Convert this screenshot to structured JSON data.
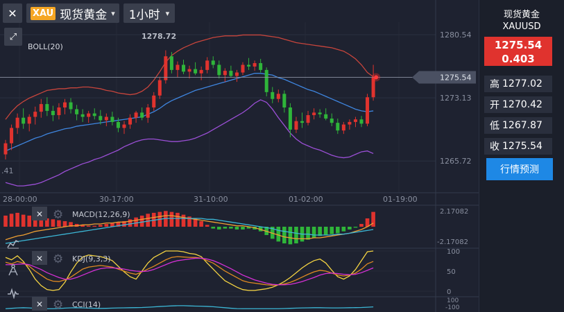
{
  "toolbar": {
    "close_label": "✕",
    "symbol_badge": "XAU",
    "symbol_name": "现货黄金",
    "timeframe": "1小时",
    "caret": "▾",
    "expand_label": "⤢"
  },
  "chart": {
    "indicator_label": "BOLL(20)",
    "high_marker": "1278.72",
    "left_partial_label": ".41",
    "price_axis": [
      "1280.54",
      "1273.13",
      "1265.72"
    ],
    "current_price_tag": "1275.54",
    "time_axis": [
      "28-00:00",
      "30-17:00",
      "31-10:00",
      "01-02:00",
      "01-19:00"
    ]
  },
  "macd": {
    "label": "MACD(12,26,9)",
    "axis_top": "2.17082",
    "axis_bottom": "-2.17082"
  },
  "kdj": {
    "label": "KDJ(9,3,3)",
    "axis": [
      "100",
      "50",
      "0"
    ]
  },
  "cci": {
    "label": "CCI(14)",
    "axis": [
      "100",
      "-100"
    ]
  },
  "quote": {
    "name": "现货黄金",
    "code": "XAUUSD",
    "price": "1275.54",
    "change": "0.403",
    "high_label": "高",
    "high_value": "1277.02",
    "open_label": "开",
    "open_value": "1270.42",
    "low_label": "低",
    "low_value": "1267.87",
    "close_label": "收",
    "close_value": "1275.54",
    "forecast_label": "行情预测"
  },
  "icons": {
    "indicator_close": "✕",
    "settings": "⚙"
  },
  "colors": {
    "up": "#e0332e",
    "down": "#2fb53a",
    "boll_upper": "#c8453c",
    "boll_mid": "#3f86e0",
    "boll_lower": "#9b4fd6",
    "accent": "#1e88e5"
  },
  "chart_data": {
    "type": "candlestick",
    "candles": [
      [
        1266.5,
        1268.2,
        1265.9,
        1267.8
      ],
      [
        1267.8,
        1270.0,
        1267.0,
        1269.6
      ],
      [
        1269.6,
        1271.3,
        1268.9,
        1270.8
      ],
      [
        1270.8,
        1271.9,
        1269.5,
        1270.1
      ],
      [
        1270.1,
        1271.2,
        1269.2,
        1270.9
      ],
      [
        1270.9,
        1272.1,
        1270.0,
        1271.5
      ],
      [
        1271.5,
        1273.0,
        1270.8,
        1272.4
      ],
      [
        1272.4,
        1273.2,
        1271.0,
        1271.6
      ],
      [
        1271.6,
        1272.2,
        1270.4,
        1271.1
      ],
      [
        1271.1,
        1272.5,
        1270.6,
        1272.0
      ],
      [
        1272.0,
        1273.0,
        1271.2,
        1272.6
      ],
      [
        1272.6,
        1273.1,
        1271.3,
        1271.8
      ],
      [
        1271.8,
        1272.3,
        1270.5,
        1271.2
      ],
      [
        1271.2,
        1271.8,
        1270.3,
        1270.9
      ],
      [
        1270.9,
        1271.6,
        1270.2,
        1271.3
      ],
      [
        1271.3,
        1271.9,
        1270.6,
        1271.0
      ],
      [
        1271.0,
        1271.7,
        1270.0,
        1270.5
      ],
      [
        1270.5,
        1271.3,
        1269.8,
        1270.9
      ],
      [
        1270.9,
        1271.5,
        1269.9,
        1270.3
      ],
      [
        1270.3,
        1270.8,
        1269.1,
        1269.6
      ],
      [
        1269.6,
        1270.4,
        1268.9,
        1270.0
      ],
      [
        1270.0,
        1271.2,
        1269.5,
        1270.8
      ],
      [
        1270.8,
        1271.6,
        1270.2,
        1271.4
      ],
      [
        1271.4,
        1272.0,
        1270.5,
        1270.8
      ],
      [
        1270.8,
        1272.4,
        1270.2,
        1272.0
      ],
      [
        1272.0,
        1273.8,
        1271.6,
        1273.4
      ],
      [
        1273.4,
        1275.6,
        1273.0,
        1275.2
      ],
      [
        1275.2,
        1278.7,
        1274.8,
        1278.0
      ],
      [
        1278.0,
        1278.5,
        1276.0,
        1276.4
      ],
      [
        1276.4,
        1277.4,
        1275.5,
        1277.0
      ],
      [
        1277.0,
        1277.6,
        1275.9,
        1276.2
      ],
      [
        1276.2,
        1276.9,
        1275.4,
        1276.5
      ],
      [
        1276.5,
        1277.3,
        1275.8,
        1276.0
      ],
      [
        1276.0,
        1276.8,
        1275.2,
        1276.4
      ],
      [
        1276.4,
        1277.9,
        1276.0,
        1277.5
      ],
      [
        1277.5,
        1278.0,
        1276.6,
        1277.0
      ],
      [
        1277.0,
        1277.5,
        1275.4,
        1275.8
      ],
      [
        1275.8,
        1276.6,
        1275.0,
        1276.3
      ],
      [
        1276.3,
        1276.9,
        1275.5,
        1275.7
      ],
      [
        1275.7,
        1276.4,
        1275.0,
        1276.1
      ],
      [
        1276.1,
        1277.3,
        1275.8,
        1277.0
      ],
      [
        1277.0,
        1277.8,
        1276.4,
        1276.8
      ],
      [
        1276.8,
        1277.5,
        1276.3,
        1277.2
      ],
      [
        1277.2,
        1277.7,
        1276.1,
        1276.4
      ],
      [
        1276.4,
        1276.7,
        1273.3,
        1273.8
      ],
      [
        1273.8,
        1274.4,
        1272.5,
        1273.0
      ],
      [
        1273.0,
        1274.1,
        1272.6,
        1273.6
      ],
      [
        1273.6,
        1274.0,
        1271.4,
        1272.0
      ],
      [
        1272.0,
        1272.5,
        1268.5,
        1269.4
      ],
      [
        1269.4,
        1270.9,
        1269.0,
        1270.4
      ],
      [
        1270.4,
        1271.4,
        1269.6,
        1270.2
      ],
      [
        1270.2,
        1271.6,
        1269.9,
        1271.1
      ],
      [
        1271.1,
        1271.9,
        1270.6,
        1271.4
      ],
      [
        1271.4,
        1271.8,
        1270.8,
        1271.2
      ],
      [
        1271.2,
        1271.9,
        1270.5,
        1270.7
      ],
      [
        1270.7,
        1271.3,
        1269.8,
        1270.2
      ],
      [
        1270.2,
        1270.7,
        1268.9,
        1269.3
      ],
      [
        1269.3,
        1270.3,
        1268.9,
        1270.0
      ],
      [
        1270.0,
        1270.6,
        1269.4,
        1270.3
      ],
      [
        1270.3,
        1270.9,
        1269.7,
        1270.6
      ],
      [
        1270.6,
        1271.0,
        1269.7,
        1270.1
      ],
      [
        1270.1,
        1273.6,
        1269.8,
        1273.2
      ],
      [
        1273.2,
        1277.0,
        1272.8,
        1275.54
      ]
    ],
    "boll_upper": [
      1270.6,
      1271.5,
      1272.2,
      1272.7,
      1273.1,
      1273.4,
      1273.7,
      1274.0,
      1274.1,
      1274.2,
      1274.2,
      1274.3,
      1274.3,
      1274.4,
      1274.4,
      1274.3,
      1274.2,
      1274.0,
      1273.9,
      1273.7,
      1273.6,
      1273.5,
      1273.6,
      1273.9,
      1274.4,
      1275.2,
      1276.2,
      1277.3,
      1278.1,
      1278.6,
      1279.0,
      1279.3,
      1279.6,
      1279.8,
      1280.0,
      1280.2,
      1280.3,
      1280.4,
      1280.4,
      1280.4,
      1280.5,
      1280.5,
      1280.5,
      1280.5,
      1280.4,
      1280.3,
      1280.2,
      1280.0,
      1279.8,
      1279.6,
      1279.5,
      1279.4,
      1279.3,
      1279.2,
      1279.1,
      1279.0,
      1278.8,
      1278.6,
      1278.2,
      1277.7,
      1277.0,
      1276.1,
      1275.6
    ],
    "boll_mid": [
      1266.9,
      1267.2,
      1267.5,
      1267.8,
      1268.1,
      1268.4,
      1268.6,
      1268.9,
      1269.1,
      1269.3,
      1269.5,
      1269.6,
      1269.8,
      1269.9,
      1270.0,
      1270.1,
      1270.2,
      1270.3,
      1270.4,
      1270.5,
      1270.6,
      1270.7,
      1270.8,
      1270.9,
      1271.2,
      1271.5,
      1271.9,
      1272.4,
      1272.8,
      1273.1,
      1273.4,
      1273.7,
      1274.0,
      1274.2,
      1274.4,
      1274.6,
      1274.8,
      1275.0,
      1275.2,
      1275.4,
      1275.6,
      1275.8,
      1276.0,
      1276.0,
      1275.9,
      1275.8,
      1275.5,
      1275.3,
      1275.0,
      1274.7,
      1274.4,
      1274.1,
      1273.9,
      1273.6,
      1273.3,
      1273.0,
      1272.7,
      1272.4,
      1272.1,
      1271.8,
      1271.6,
      1271.5,
      1271.6
    ],
    "boll_lower": [
      1263.2,
      1263.0,
      1262.8,
      1262.8,
      1262.9,
      1263.0,
      1263.2,
      1263.5,
      1263.8,
      1264.1,
      1264.5,
      1264.8,
      1265.1,
      1265.4,
      1265.6,
      1265.9,
      1266.1,
      1266.4,
      1266.7,
      1267.0,
      1267.4,
      1267.7,
      1268.0,
      1268.2,
      1268.3,
      1268.3,
      1268.2,
      1268.1,
      1268.0,
      1268.0,
      1268.1,
      1268.2,
      1268.4,
      1268.7,
      1269.0,
      1269.4,
      1269.8,
      1270.2,
      1270.6,
      1271.0,
      1271.4,
      1271.9,
      1272.5,
      1272.9,
      1272.6,
      1271.8,
      1270.8,
      1269.9,
      1269.0,
      1268.3,
      1267.8,
      1267.5,
      1267.2,
      1267.0,
      1266.7,
      1266.4,
      1266.2,
      1266.1,
      1266.2,
      1266.5,
      1266.8,
      1266.9,
      1266.6
    ],
    "y_range": [
      1262.0,
      1282.0
    ],
    "macd_hist": [
      1.2,
      1.4,
      1.5,
      1.3,
      1.2,
      1.1,
      1.0,
      0.9,
      0.8,
      0.7,
      0.6,
      0.5,
      0.3,
      0.2,
      0.1,
      0.1,
      0.2,
      0.3,
      0.4,
      0.5,
      0.6,
      0.8,
      1.0,
      1.2,
      1.4,
      1.5,
      1.6,
      1.7,
      1.6,
      1.5,
      1.3,
      1.1,
      0.9,
      0.6,
      0.2,
      -0.2,
      -0.3,
      -0.2,
      -0.2,
      -0.3,
      -0.3,
      -0.2,
      -0.3,
      -0.5,
      -0.9,
      -1.3,
      -1.6,
      -1.8,
      -1.9,
      -1.8,
      -1.6,
      -1.4,
      -1.2,
      -1.0,
      -0.9,
      -0.8,
      -0.7,
      -0.5,
      -0.3,
      -0.1,
      0.3,
      0.9,
      1.6
    ],
    "macd_dif": [
      -1.4,
      -1.2,
      -1.0,
      -0.9,
      -0.7,
      -0.5,
      -0.4,
      -0.3,
      -0.2,
      -0.1,
      0.0,
      0.1,
      0.1,
      0.2,
      0.2,
      0.3,
      0.3,
      0.4,
      0.4,
      0.5,
      0.5,
      0.6,
      0.7,
      0.8,
      0.9,
      1.0,
      1.1,
      1.2,
      1.2,
      1.1,
      1.0,
      0.9,
      0.8,
      0.7,
      0.6,
      0.5,
      0.4,
      0.3,
      0.2,
      0.1,
      0.1,
      0.0,
      -0.1,
      -0.3,
      -0.5,
      -0.7,
      -0.9,
      -1.1,
      -1.2,
      -1.3,
      -1.3,
      -1.3,
      -1.2,
      -1.2,
      -1.1,
      -1.0,
      -0.9,
      -0.8,
      -0.7,
      -0.5,
      -0.3,
      0.0,
      0.4
    ],
    "macd_dea": [
      -1.8,
      -1.7,
      -1.6,
      -1.5,
      -1.4,
      -1.3,
      -1.2,
      -1.1,
      -1.0,
      -0.9,
      -0.8,
      -0.7,
      -0.6,
      -0.5,
      -0.4,
      -0.3,
      -0.2,
      -0.1,
      0.0,
      0.1,
      0.2,
      0.3,
      0.4,
      0.5,
      0.6,
      0.7,
      0.8,
      0.9,
      0.9,
      0.9,
      0.9,
      0.9,
      0.9,
      0.9,
      0.8,
      0.8,
      0.7,
      0.6,
      0.5,
      0.4,
      0.3,
      0.2,
      0.1,
      0.0,
      -0.1,
      -0.2,
      -0.4,
      -0.5,
      -0.6,
      -0.7,
      -0.8,
      -0.8,
      -0.9,
      -0.9,
      -0.9,
      -0.9,
      -0.8,
      -0.8,
      -0.7,
      -0.6,
      -0.5,
      -0.4,
      -0.3
    ],
    "macd_range": [
      -2.17082,
      2.17082
    ],
    "kdj_k": [
      72,
      68,
      74,
      70,
      62,
      50,
      40,
      30,
      25,
      24,
      28,
      35,
      45,
      55,
      60,
      62,
      64,
      62,
      60,
      55,
      50,
      45,
      42,
      48,
      55,
      62,
      70,
      78,
      84,
      86,
      85,
      84,
      84,
      82,
      76,
      70,
      60,
      50,
      42,
      34,
      26,
      22,
      20,
      18,
      16,
      15,
      16,
      18,
      22,
      28,
      35,
      42,
      48,
      52,
      50,
      45,
      40,
      38,
      40,
      45,
      55,
      68,
      74
    ],
    "kdj_d": [
      66,
      66,
      67,
      68,
      66,
      60,
      54,
      46,
      40,
      34,
      30,
      30,
      34,
      40,
      46,
      52,
      56,
      58,
      58,
      57,
      55,
      52,
      50,
      49,
      50,
      54,
      60,
      66,
      72,
      76,
      78,
      80,
      82,
      82,
      80,
      76,
      70,
      63,
      56,
      48,
      40,
      34,
      28,
      24,
      20,
      17,
      16,
      16,
      17,
      20,
      24,
      29,
      34,
      40,
      44,
      45,
      44,
      42,
      41,
      42,
      46,
      52,
      58
    ],
    "kdj_j": [
      84,
      78,
      88,
      74,
      54,
      30,
      14,
      4,
      2,
      4,
      22,
      48,
      70,
      85,
      90,
      88,
      86,
      82,
      76,
      62,
      48,
      36,
      30,
      50,
      70,
      84,
      92,
      100,
      100,
      100,
      98,
      94,
      92,
      86,
      70,
      55,
      40,
      26,
      18,
      10,
      4,
      2,
      2,
      4,
      6,
      10,
      16,
      24,
      34,
      46,
      58,
      68,
      76,
      80,
      70,
      52,
      36,
      30,
      38,
      54,
      76,
      98,
      100
    ],
    "kdj_range": [
      0,
      100
    ],
    "cci": [
      -100,
      -92,
      -84,
      -80,
      -84,
      -92,
      -96,
      -100,
      -100,
      -96,
      -88,
      -82,
      -80,
      -84,
      -88,
      -92,
      -94,
      -92,
      -88,
      -84,
      -82,
      -80,
      -78,
      -76,
      -70,
      -64,
      -56,
      -50,
      -44,
      -40,
      -40,
      -44,
      -48,
      -50,
      -54,
      -60,
      -70,
      -80,
      -90,
      -98,
      -100,
      -100,
      -100,
      -100,
      -100,
      -100,
      -100,
      -96,
      -92,
      -88,
      -84,
      -82,
      -80,
      -80,
      -82,
      -84,
      -84,
      -82,
      -80,
      -78,
      -76,
      -70,
      -64
    ],
    "cci_range": [
      -110,
      110
    ]
  }
}
